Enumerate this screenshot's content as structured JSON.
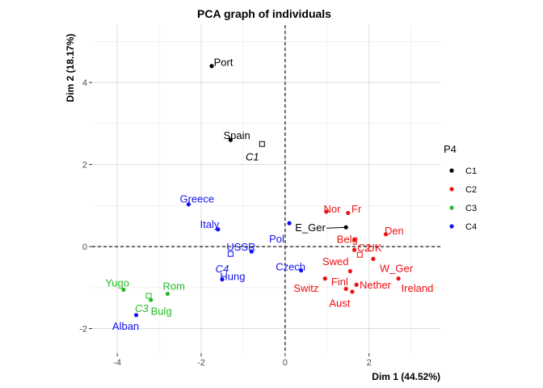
{
  "chart_data": {
    "type": "scatter",
    "title": "PCA graph of individuals",
    "xlabel": "Dim 1 (44.52%)",
    "ylabel": "Dim 2 (18.17%)",
    "xlim": [
      -4.6,
      3.7
    ],
    "ylim": [
      -2.6,
      5.4
    ],
    "x_ticks": [
      -4,
      -2,
      0,
      2
    ],
    "y_ticks": [
      -2,
      0,
      2,
      4
    ],
    "grid": true,
    "reference_lines": [
      0,
      0
    ],
    "legend": {
      "title": "P4",
      "placement": "right",
      "entries": [
        {
          "name": "C1",
          "color": "#000000"
        },
        {
          "name": "C2",
          "color": "#ee1111"
        },
        {
          "name": "C3",
          "color": "#22bb22"
        },
        {
          "name": "C4",
          "color": "#1111ee"
        }
      ]
    },
    "points": [
      {
        "label": "Port",
        "x": -1.75,
        "y": 4.4,
        "cluster": "C1",
        "lx": -1.7,
        "ly": 4.5,
        "anchor": "start"
      },
      {
        "label": "Spain",
        "x": -1.3,
        "y": 2.6,
        "cluster": "C1",
        "lx": -1.15,
        "ly": 2.72,
        "anchor": "middle"
      },
      {
        "label": "E_Ger",
        "x": 1.45,
        "y": 0.47,
        "cluster": "C1",
        "lx": 0.6,
        "ly": 0.47,
        "anchor": "middle",
        "leader": true
      },
      {
        "label": "Nor",
        "x": 0.98,
        "y": 0.85,
        "cluster": "C2",
        "lx": 1.12,
        "ly": 0.93,
        "anchor": "middle"
      },
      {
        "label": "Fr",
        "x": 1.5,
        "y": 0.82,
        "cluster": "C2",
        "lx": 1.7,
        "ly": 0.93,
        "anchor": "middle"
      },
      {
        "label": "Den",
        "x": 2.4,
        "y": 0.3,
        "cluster": "C2",
        "lx": 2.6,
        "ly": 0.4,
        "anchor": "middle"
      },
      {
        "label": "Belg",
        "x": 1.65,
        "y": 0.17,
        "cluster": "C2",
        "lx": 1.48,
        "ly": 0.19,
        "anchor": "middle"
      },
      {
        "label": "UK",
        "x": 1.65,
        "y": -0.08,
        "cluster": "C2",
        "lx": 2.13,
        "ly": -0.02,
        "anchor": "middle"
      },
      {
        "label": "Swed",
        "x": 1.55,
        "y": -0.6,
        "cluster": "C2",
        "lx": 1.2,
        "ly": -0.35,
        "anchor": "middle"
      },
      {
        "label": "W_Ger",
        "x": 2.1,
        "y": -0.3,
        "cluster": "C2",
        "lx": 2.65,
        "ly": -0.52,
        "anchor": "middle"
      },
      {
        "label": "Switz",
        "x": 0.95,
        "y": -0.78,
        "cluster": "C2",
        "lx": 0.5,
        "ly": -1.0,
        "anchor": "middle"
      },
      {
        "label": "Finl",
        "x": 1.45,
        "y": -1.03,
        "cluster": "C2",
        "lx": 1.3,
        "ly": -0.85,
        "anchor": "middle"
      },
      {
        "label": "Nether",
        "x": 1.7,
        "y": -0.93,
        "cluster": "C2",
        "lx": 2.15,
        "ly": -0.93,
        "anchor": "middle"
      },
      {
        "label": "Ireland",
        "x": 2.7,
        "y": -0.78,
        "cluster": "C2",
        "lx": 3.15,
        "ly": -1.0,
        "anchor": "middle"
      },
      {
        "label": "Aust",
        "x": 1.6,
        "y": -1.1,
        "cluster": "C2",
        "lx": 1.3,
        "ly": -1.37,
        "anchor": "middle"
      },
      {
        "label": "Yugo",
        "x": -3.85,
        "y": -1.05,
        "cluster": "C3",
        "lx": -4.0,
        "ly": -0.88,
        "anchor": "middle"
      },
      {
        "label": "Rom",
        "x": -2.8,
        "y": -1.15,
        "cluster": "C3",
        "lx": -2.65,
        "ly": -0.95,
        "anchor": "middle"
      },
      {
        "label": "Bulg",
        "x": -3.2,
        "y": -1.3,
        "cluster": "C3",
        "lx": -2.95,
        "ly": -1.57,
        "anchor": "middle"
      },
      {
        "label": "Alban",
        "x": -3.55,
        "y": -1.67,
        "cluster": "C4",
        "lx": -3.8,
        "ly": -1.93,
        "anchor": "middle"
      },
      {
        "label": "Greece",
        "x": -2.3,
        "y": 1.03,
        "cluster": "C4",
        "lx": -2.1,
        "ly": 1.17,
        "anchor": "middle"
      },
      {
        "label": "Italy",
        "x": -1.6,
        "y": 0.42,
        "cluster": "C4",
        "lx": -1.8,
        "ly": 0.55,
        "anchor": "middle"
      },
      {
        "label": "USSR",
        "x": -0.8,
        "y": -0.12,
        "cluster": "C4",
        "lx": -1.05,
        "ly": 0.0,
        "anchor": "middle"
      },
      {
        "label": "Pol",
        "x": 0.1,
        "y": 0.57,
        "cluster": "C4",
        "lx": -0.2,
        "ly": 0.2,
        "anchor": "middle"
      },
      {
        "label": "Czech",
        "x": 0.38,
        "y": -0.58,
        "cluster": "C4",
        "lx": 0.13,
        "ly": -0.48,
        "anchor": "middle"
      },
      {
        "label": "Hung",
        "x": -1.5,
        "y": -0.8,
        "cluster": "C4",
        "lx": -1.25,
        "ly": -0.72,
        "anchor": "middle"
      }
    ],
    "centroids": [
      {
        "label": "C1",
        "x": -0.55,
        "y": 2.5,
        "cluster": "C1",
        "lx": -0.78,
        "ly": 2.2,
        "anchor": "middle"
      },
      {
        "label": "C2",
        "x": 1.78,
        "y": -0.2,
        "cluster": "C2",
        "lx": 1.88,
        "ly": -0.02,
        "anchor": "middle"
      },
      {
        "label": "C3",
        "x": -3.25,
        "y": -1.2,
        "cluster": "C3",
        "lx": -3.42,
        "ly": -1.5,
        "anchor": "middle"
      },
      {
        "label": "C4",
        "x": -1.3,
        "y": -0.18,
        "cluster": "C4",
        "lx": -1.5,
        "ly": -0.53,
        "anchor": "middle"
      }
    ]
  }
}
